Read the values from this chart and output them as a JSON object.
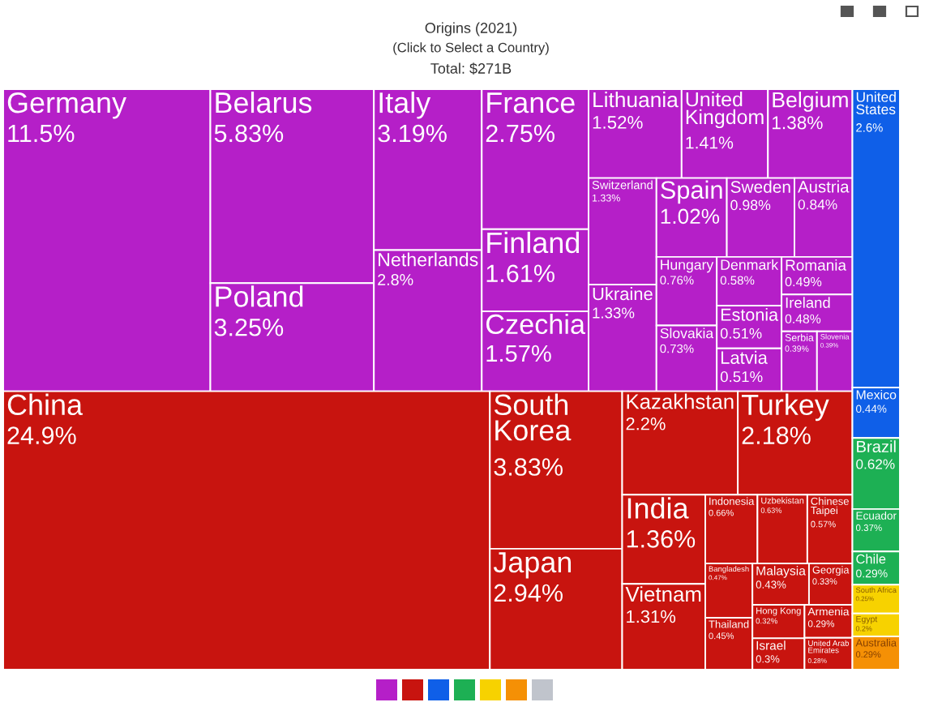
{
  "chart_data": {
    "type": "other",
    "title": "Origins (2021)",
    "subtitle": "(Click to Select a Country)",
    "annotations": [
      "Total: $271B"
    ],
    "categories": [
      "Germany",
      "Belarus",
      "Poland",
      "Italy",
      "Netherlands",
      "France",
      "Finland",
      "Czechia",
      "Lithuania",
      "United Kingdom",
      "Belgium",
      "Switzerland",
      "Ukraine",
      "Spain",
      "Sweden",
      "Austria",
      "Hungary",
      "Slovakia",
      "Denmark",
      "Estonia",
      "Latvia",
      "Romania",
      "Ireland",
      "Serbia",
      "Slovenia",
      "China",
      "South Korea",
      "Japan",
      "Kazakhstan",
      "Turkey",
      "India",
      "Vietnam",
      "Indonesia",
      "Uzbekistan",
      "Chinese Taipei",
      "Bangladesh",
      "Thailand",
      "Malaysia",
      "Georgia",
      "Hong Kong",
      "Israel",
      "Armenia",
      "United Arab Emirates",
      "United States",
      "Mexico",
      "Brazil",
      "Ecuador",
      "Chile",
      "South Africa",
      "Egypt",
      "Australia"
    ],
    "values": [
      11.5,
      5.83,
      3.25,
      3.19,
      2.8,
      2.75,
      1.61,
      1.57,
      1.52,
      1.41,
      1.38,
      1.33,
      1.33,
      1.02,
      0.98,
      0.84,
      0.76,
      0.73,
      0.58,
      0.51,
      0.51,
      0.49,
      0.48,
      0.39,
      0.39,
      24.9,
      3.83,
      2.94,
      2.2,
      2.18,
      1.36,
      1.31,
      0.66,
      0.63,
      0.57,
      0.47,
      0.45,
      0.43,
      0.33,
      0.32,
      0.3,
      0.29,
      0.28,
      2.6,
      0.44,
      0.62,
      0.37,
      0.29,
      0.25,
      0.2,
      0.29
    ],
    "value_labels": [
      "11.5%",
      "5.83%",
      "3.25%",
      "3.19%",
      "2.8%",
      "2.75%",
      "1.61%",
      "1.57%",
      "1.52%",
      "1.41%",
      "1.38%",
      "1.33%",
      "1.33%",
      "1.02%",
      "0.98%",
      "0.84%",
      "0.76%",
      "0.73%",
      "0.58%",
      "0.51%",
      "0.51%",
      "0.49%",
      "0.48%",
      "0.39%",
      "0.39%",
      "24.9%",
      "3.83%",
      "2.94%",
      "2.2%",
      "2.18%",
      "1.36%",
      "1.31%",
      "0.66%",
      "0.63%",
      "0.57%",
      "0.47%",
      "0.45%",
      "0.43%",
      "0.33%",
      "0.32%",
      "0.3%",
      "0.29%",
      "0.28%",
      "2.6%",
      "0.44%",
      "0.62%",
      "0.37%",
      "0.29%",
      "0.25%",
      "0.2%",
      "0.29%"
    ],
    "colors": [
      "#b51fc8",
      "#b51fc8",
      "#b51fc8",
      "#b51fc8",
      "#b51fc8",
      "#b51fc8",
      "#b51fc8",
      "#b51fc8",
      "#b51fc8",
      "#b51fc8",
      "#b51fc8",
      "#b51fc8",
      "#b51fc8",
      "#b51fc8",
      "#b51fc8",
      "#b51fc8",
      "#b51fc8",
      "#b51fc8",
      "#b51fc8",
      "#b51fc8",
      "#b51fc8",
      "#b51fc8",
      "#b51fc8",
      "#b51fc8",
      "#b51fc8",
      "#c8140f",
      "#c8140f",
      "#c8140f",
      "#c8140f",
      "#c8140f",
      "#c8140f",
      "#c8140f",
      "#c8140f",
      "#c8140f",
      "#c8140f",
      "#c8140f",
      "#c8140f",
      "#c8140f",
      "#c8140f",
      "#c8140f",
      "#c8140f",
      "#c8140f",
      "#c8140f",
      "#0f5fe8",
      "#0f5fe8",
      "#1db054",
      "#1db054",
      "#1db054",
      "#f7d200",
      "#f7d200",
      "#f59005"
    ]
  }
}
